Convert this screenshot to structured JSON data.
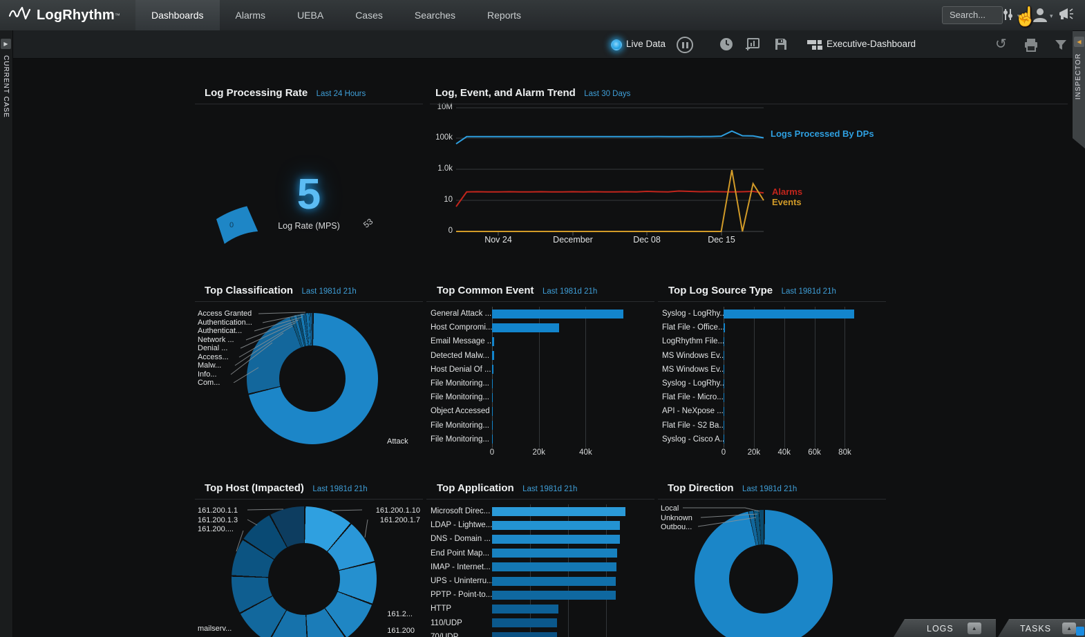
{
  "nav": {
    "brand": "LogRhythm",
    "brand_tm": "™",
    "search_placeholder": "Search...",
    "tabs": [
      {
        "label": "Dashboards",
        "active": true
      },
      {
        "label": "Alarms",
        "active": false
      },
      {
        "label": "UEBA",
        "active": false
      },
      {
        "label": "Cases",
        "active": false
      },
      {
        "label": "Searches",
        "active": false
      },
      {
        "label": "Reports",
        "active": false
      }
    ]
  },
  "toolbar": {
    "live_data_label": "Live Data",
    "dashboard_name": "Executive-Dashboard"
  },
  "rails": {
    "current_case": "CURRENT CASE",
    "inspector": "INSPECTOR"
  },
  "bottom_tabs": {
    "logs": "LOGS",
    "tasks": "TASKS"
  },
  "icons": {
    "caret": "▾",
    "refresh": "↺",
    "cursor": "☝",
    "right_arrow": "▶",
    "left_arrow": "◀",
    "up_arrow": "▲"
  },
  "colors": {
    "accent_blue": "#2e9fe0",
    "bar_blue": "#1385cc",
    "alarm_red": "#c2251c",
    "event_gold": "#d29b28",
    "subtitle_blue": "#3f9fd8"
  },
  "panels": {
    "log_processing_rate": {
      "title": "Log Processing Rate",
      "subtitle": "Last 24 Hours"
    },
    "trend": {
      "title": "Log, Event, and Alarm Trend",
      "subtitle": "Last 30 Days"
    },
    "classification": {
      "title": "Top Classification",
      "subtitle": "Last 1981d 21h"
    },
    "common_event": {
      "title": "Top Common Event",
      "subtitle": "Last 1981d 21h"
    },
    "log_source": {
      "title": "Top Log Source Type",
      "subtitle": "Last 1981d 21h"
    },
    "host": {
      "title": "Top Host (Impacted)",
      "subtitle": "Last 1981d 21h"
    },
    "application": {
      "title": "Top Application",
      "subtitle": "Last 1981d 21h"
    },
    "direction": {
      "title": "Top Direction",
      "subtitle": "Last 1981d 21h"
    }
  },
  "chart_data": [
    {
      "type": "gauge",
      "title": "Log Processing Rate",
      "value": 5,
      "min": 0,
      "max": 53,
      "label": "Log Rate (MPS)"
    },
    {
      "type": "line",
      "title": "Log, Event, and Alarm Trend",
      "y_scale": "log",
      "yticks": [
        "10M",
        "100k",
        "1.0k",
        "10",
        "0"
      ],
      "xticks": [
        "Nov 24",
        "December",
        "Dec 08",
        "Dec 15"
      ],
      "x": [
        "Nov 20",
        "Nov 21",
        "Nov 22",
        "Nov 23",
        "Nov 24",
        "Nov 25",
        "Nov 26",
        "Nov 27",
        "Nov 28",
        "Nov 29",
        "Nov 30",
        "Dec 01",
        "Dec 02",
        "Dec 03",
        "Dec 04",
        "Dec 05",
        "Dec 06",
        "Dec 07",
        "Dec 08",
        "Dec 09",
        "Dec 10",
        "Dec 11",
        "Dec 12",
        "Dec 13",
        "Dec 14",
        "Dec 15",
        "Dec 16",
        "Dec 17",
        "Dec 18",
        "Dec 19"
      ],
      "series": [
        {
          "name": "Logs Processed By DPs",
          "color": "#2e9fe0",
          "values": [
            45000,
            130000,
            131000,
            130000,
            132000,
            131000,
            130000,
            132000,
            131000,
            130000,
            131000,
            132000,
            130000,
            131000,
            132000,
            131000,
            130000,
            132000,
            131000,
            133000,
            132000,
            131000,
            133000,
            132000,
            134000,
            140000,
            300000,
            150000,
            145000,
            110000
          ]
        },
        {
          "name": "Alarms",
          "color": "#c2251c",
          "values": [
            8,
            35,
            36,
            35,
            35,
            36,
            35,
            35,
            36,
            35,
            35,
            36,
            35,
            36,
            35,
            35,
            36,
            35,
            38,
            36,
            35,
            40,
            38,
            36,
            37,
            36,
            35,
            36,
            38,
            30
          ]
        },
        {
          "name": "Events",
          "color": "#d29b28",
          "values": [
            0,
            0,
            0,
            0,
            0,
            0,
            0,
            0,
            0,
            0,
            0,
            0,
            0,
            0,
            0,
            0,
            0,
            0,
            0,
            0,
            0,
            0,
            0,
            0,
            0,
            0,
            900,
            0,
            120,
            10
          ]
        }
      ]
    },
    {
      "type": "pie",
      "title": "Top Classification",
      "slices": [
        {
          "label": "Attack",
          "value": 71.0,
          "color": "#1c86c8"
        },
        {
          "label": "Com...",
          "value": 23.4,
          "color": "#13679c"
        },
        {
          "label": "Info...",
          "value": 0.9,
          "color": "#0d577f"
        },
        {
          "label": "Malw...",
          "value": 0.8,
          "color": "#1370aa"
        },
        {
          "label": "Access...",
          "value": 0.8,
          "color": "#0a4a6e"
        },
        {
          "label": "Denial ...",
          "value": 0.8,
          "color": "#1679b4"
        },
        {
          "label": "Network ...",
          "value": 0.7,
          "color": "#0c5482"
        },
        {
          "label": "Authenticat...",
          "value": 0.7,
          "color": "#1272ab"
        },
        {
          "label": "Authentication...",
          "value": 0.5,
          "color": "#0e5e90"
        },
        {
          "label": "Access Granted",
          "value": 0.4,
          "color": "#124f79"
        }
      ]
    },
    {
      "type": "bar",
      "orientation": "horizontal",
      "title": "Top Common Event",
      "bar_color": "#1385cc",
      "axis_max": 57000,
      "ticks": [
        {
          "label": "0",
          "value": 0
        },
        {
          "label": "20k",
          "value": 20000
        },
        {
          "label": "40k",
          "value": 40000
        }
      ],
      "rows": [
        {
          "label": "General Attack ...",
          "value": 56000
        },
        {
          "label": "Host Compromi...",
          "value": 28500
        },
        {
          "label": "Email Message ...",
          "value": 900
        },
        {
          "label": "Detected Malw...",
          "value": 800
        },
        {
          "label": "Host Denial Of ...",
          "value": 700
        },
        {
          "label": "File Monitoring...",
          "value": 350
        },
        {
          "label": "File Monitoring...",
          "value": 300
        },
        {
          "label": "Object Accessed",
          "value": 250
        },
        {
          "label": "File Monitoring...",
          "value": 200
        },
        {
          "label": "File Monitoring...",
          "value": 180
        }
      ]
    },
    {
      "type": "bar",
      "orientation": "horizontal",
      "title": "Top Log Source Type",
      "bar_color": "#1385cc",
      "axis_max": 88000,
      "ticks": [
        {
          "label": "0",
          "value": 0
        },
        {
          "label": "20k",
          "value": 20000
        },
        {
          "label": "40k",
          "value": 40000
        },
        {
          "label": "60k",
          "value": 60000
        },
        {
          "label": "80k",
          "value": 80000
        }
      ],
      "rows": [
        {
          "label": "Syslog - LogRhy...",
          "value": 86000
        },
        {
          "label": "Flat File - Office...",
          "value": 700
        },
        {
          "label": "LogRhythm File...",
          "value": 650
        },
        {
          "label": "MS Windows Ev...",
          "value": 350
        },
        {
          "label": "MS Windows Ev...",
          "value": 300
        },
        {
          "label": "Syslog - LogRhy...",
          "value": 180
        },
        {
          "label": "Flat File - Micro...",
          "value": 150
        },
        {
          "label": "API - NeXpose ...",
          "value": 120
        },
        {
          "label": "Flat File - S2 Ba...",
          "value": 100
        },
        {
          "label": "Syslog - Cisco A...",
          "value": 80
        }
      ]
    },
    {
      "type": "pie",
      "title": "Top Host (Impacted)",
      "slices": [
        {
          "label": "161.200.1.10",
          "value": 11,
          "color": "#2fa0e0"
        },
        {
          "label": "161.200.1.7",
          "value": 10,
          "color": "#2a97d8"
        },
        {
          "label": "",
          "value": 9.5,
          "color": "#2590cf"
        },
        {
          "label": "161.2...",
          "value": 9.5,
          "color": "#1f86c4"
        },
        {
          "label": "161.200",
          "value": 9,
          "color": "#1b7cb8"
        },
        {
          "label": "",
          "value": 9,
          "color": "#1672ab"
        },
        {
          "label": "mailserv...",
          "value": 9,
          "color": "#12689d"
        },
        {
          "label": "",
          "value": 8.5,
          "color": "#0f5e90"
        },
        {
          "label": "161.200....",
          "value": 8.5,
          "color": "#0c5482"
        },
        {
          "label": "161.200.1.3",
          "value": 8,
          "color": "#094a74"
        },
        {
          "label": "161.200.1.1",
          "value": 8,
          "color": "#0d3d60"
        }
      ]
    },
    {
      "type": "bar",
      "orientation": "horizontal",
      "title": "Top Application",
      "axis_max": 175000,
      "colors": [
        "#2b9ad8",
        "#2393d2",
        "#1e8aca",
        "#1881bf",
        "#1478b4",
        "#1170aa",
        "#0f68a0",
        "#0d6096",
        "#0b588c",
        "#0a5183"
      ],
      "ticks": [
        {
          "label": "",
          "value": 50000
        },
        {
          "label": "",
          "value": 100000
        },
        {
          "label": "",
          "value": 150000
        }
      ],
      "rows": [
        {
          "label": "Microsoft Direc...",
          "value": 175000
        },
        {
          "label": "LDAP - Lightwe...",
          "value": 168000
        },
        {
          "label": "DNS - Domain ...",
          "value": 168000
        },
        {
          "label": "End Point Map...",
          "value": 164000
        },
        {
          "label": "IMAP - Internet...",
          "value": 163000
        },
        {
          "label": "UPS - Uninterru...",
          "value": 162500
        },
        {
          "label": "PPTP - Point-to...",
          "value": 162000
        },
        {
          "label": "HTTP",
          "value": 87000
        },
        {
          "label": "110/UDP",
          "value": 85000
        },
        {
          "label": "70/UDP",
          "value": 85000
        }
      ]
    },
    {
      "type": "pie",
      "title": "Top Direction",
      "slices": [
        {
          "label": "",
          "value": 96.4,
          "color": "#1b86c8"
        },
        {
          "label": "Outbou...",
          "value": 1.2,
          "color": "#11679c"
        },
        {
          "label": "Unknown",
          "value": 1.2,
          "color": "#0d577f"
        },
        {
          "label": "Local",
          "value": 1.2,
          "color": "#0a4a6e"
        }
      ]
    }
  ]
}
